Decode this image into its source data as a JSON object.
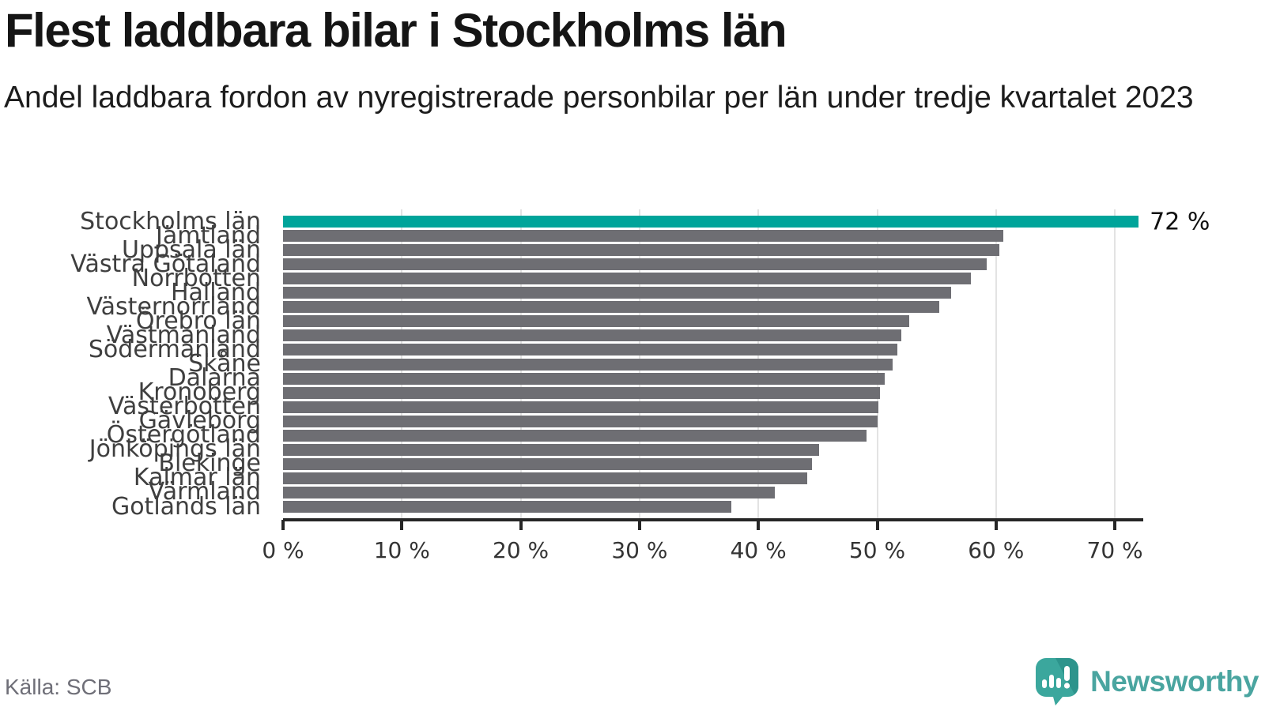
{
  "header": {
    "title": "Flest laddbara bilar i Stockholms län",
    "subtitle": "Andel laddbara fordon av nyregistrerade personbilar per län under tredje kvartalet 2023"
  },
  "chart_data": {
    "type": "bar",
    "orientation": "horizontal",
    "title": "Flest laddbara bilar i Stockholms län",
    "subtitle": "Andel laddbara fordon av nyregistrerade personbilar per län under tredje kvartalet 2023",
    "categories": [
      "Stockholms län",
      "Jämtland",
      "Uppsala län",
      "Västra Götaland",
      "Norrbotten",
      "Halland",
      "Västernorrland",
      "Örebro län",
      "Västmanland",
      "Södermanland",
      "Skåne",
      "Dalarna",
      "Kronoberg",
      "Västerbotten",
      "Gävleborg",
      "Östergötland",
      "Jönköpings län",
      "Blekinge",
      "Kalmar län",
      "Värmland",
      "Gotlands län"
    ],
    "values": [
      72,
      60.6,
      60.3,
      59.2,
      57.9,
      56.2,
      55.2,
      52.7,
      52.0,
      51.7,
      51.3,
      50.6,
      50.2,
      50.1,
      50.0,
      49.1,
      45.1,
      44.5,
      44.1,
      41.4,
      37.7
    ],
    "unit": "%",
    "highlight_index": 0,
    "highlight_label": "72 %",
    "xlim": [
      0,
      72
    ],
    "x_ticks": [
      0,
      10,
      20,
      30,
      40,
      50,
      60,
      70
    ],
    "x_tick_labels": [
      "0 %",
      "10 %",
      "20 %",
      "30 %",
      "40 %",
      "50 %",
      "60 %",
      "70 %"
    ],
    "grid": "vertical-gridlines-behind-bars",
    "legend": "none",
    "colors": {
      "bar": "#6e6e73",
      "highlight": "#00a49a",
      "gridline": "#e3e3e3",
      "axis": "#262626",
      "label_text": "#3f3f3f"
    }
  },
  "footer": {
    "source": "Källa: SCB",
    "brand": "Newsworthy"
  }
}
